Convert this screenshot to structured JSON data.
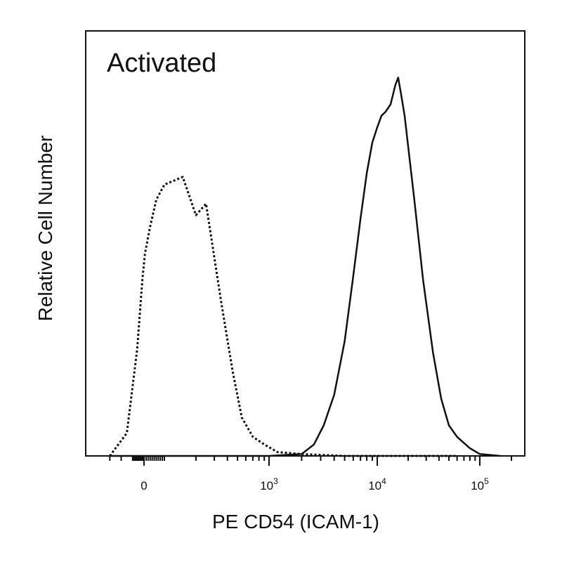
{
  "chart_data": {
    "type": "line",
    "panel_label": "Activated",
    "xlabel": "PE CD54 (ICAM-1)",
    "ylabel": "Relative Cell Number",
    "x_scale": "biexponential (logicle)",
    "x_ticks": [
      {
        "value": 0,
        "base": "0",
        "exp": ""
      },
      {
        "value": 1000,
        "base": "10",
        "exp": "3"
      },
      {
        "value": 10000,
        "base": "10",
        "exp": "4"
      },
      {
        "value": 100000,
        "base": "10",
        "exp": "5"
      }
    ],
    "grid": false,
    "legend": "none",
    "ylim": [
      0,
      100
    ],
    "series": [
      {
        "style": "dotted",
        "color": "#111111",
        "x": [
          -300,
          -150,
          -60,
          -15,
          5,
          30,
          60,
          100,
          150,
          200,
          250,
          350,
          450,
          550,
          700,
          900,
          1200,
          2000,
          5000,
          20000,
          60000
        ],
        "y": [
          0,
          6,
          28,
          46,
          53,
          60,
          67,
          71,
          73,
          63,
          66,
          40,
          22,
          10,
          5,
          3,
          1,
          0.5,
          0,
          0,
          0
        ]
      },
      {
        "style": "solid",
        "color": "#111111",
        "x": [
          -300,
          1000,
          2000,
          2600,
          3200,
          4000,
          5000,
          6000,
          7000,
          8000,
          9000,
          10000,
          11000,
          12000,
          13500,
          15000,
          16000,
          17000,
          18500,
          20000,
          23000,
          28000,
          35000,
          42000,
          50000,
          60000,
          80000,
          100000,
          130000
        ],
        "y": [
          0,
          0,
          0.5,
          3,
          8,
          16,
          30,
          47,
          62,
          74,
          82,
          86,
          89,
          90,
          92,
          97,
          99,
          95,
          89,
          81,
          67,
          46,
          27,
          15,
          8,
          5,
          2,
          0.5,
          0
        ]
      }
    ]
  }
}
